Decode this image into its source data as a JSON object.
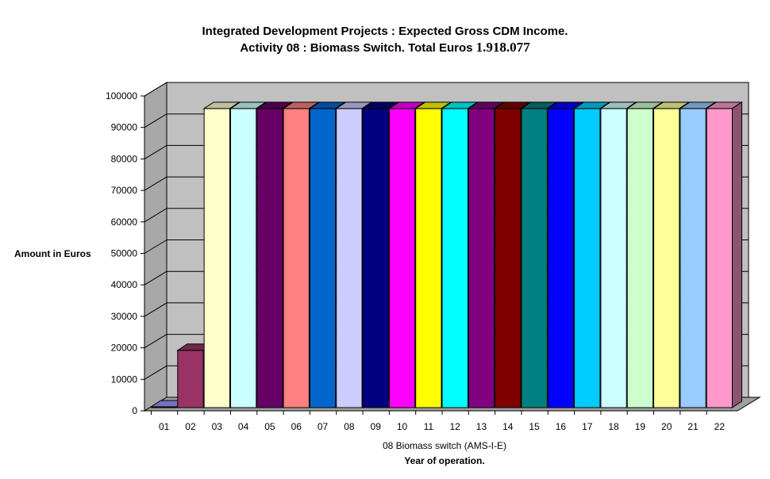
{
  "chart_data": {
    "type": "bar",
    "title_line1": "Integrated Development Projects : Expected Gross CDM Income.",
    "title_line2_prefix": "Activity 08 : Biomass Switch. Total Euros",
    "title_total": "1.918.077",
    "ylabel": "Amount in Euros",
    "xlabel_line1": "08 Biomass switch (AMS-I-E)",
    "xlabel_line2": "Year of operation.",
    "ylim": [
      0,
      100000
    ],
    "yticks": [
      0,
      10000,
      20000,
      30000,
      40000,
      50000,
      60000,
      70000,
      80000,
      90000,
      100000
    ],
    "grid": true,
    "categories": [
      "01",
      "02",
      "03",
      "04",
      "05",
      "06",
      "07",
      "08",
      "09",
      "10",
      "11",
      "12",
      "13",
      "14",
      "15",
      "16",
      "17",
      "18",
      "19",
      "20",
      "21",
      "22"
    ],
    "values": [
      0,
      18200,
      95000,
      95000,
      95000,
      95000,
      95000,
      95000,
      95000,
      95000,
      95000,
      95000,
      95000,
      95000,
      95000,
      95000,
      95000,
      95000,
      95000,
      95000,
      95000,
      95000
    ],
    "colors": [
      "#9999ff",
      "#993366",
      "#ffffcc",
      "#ccffff",
      "#660066",
      "#ff8080",
      "#0066cc",
      "#ccccff",
      "#000080",
      "#ff00ff",
      "#ffff00",
      "#00ffff",
      "#800080",
      "#800000",
      "#008080",
      "#0000ff",
      "#00ccff",
      "#ccffff",
      "#ccffcc",
      "#ffff99",
      "#99ccff",
      "#ff99cc"
    ],
    "wall_color": "#c0c0c0"
  }
}
